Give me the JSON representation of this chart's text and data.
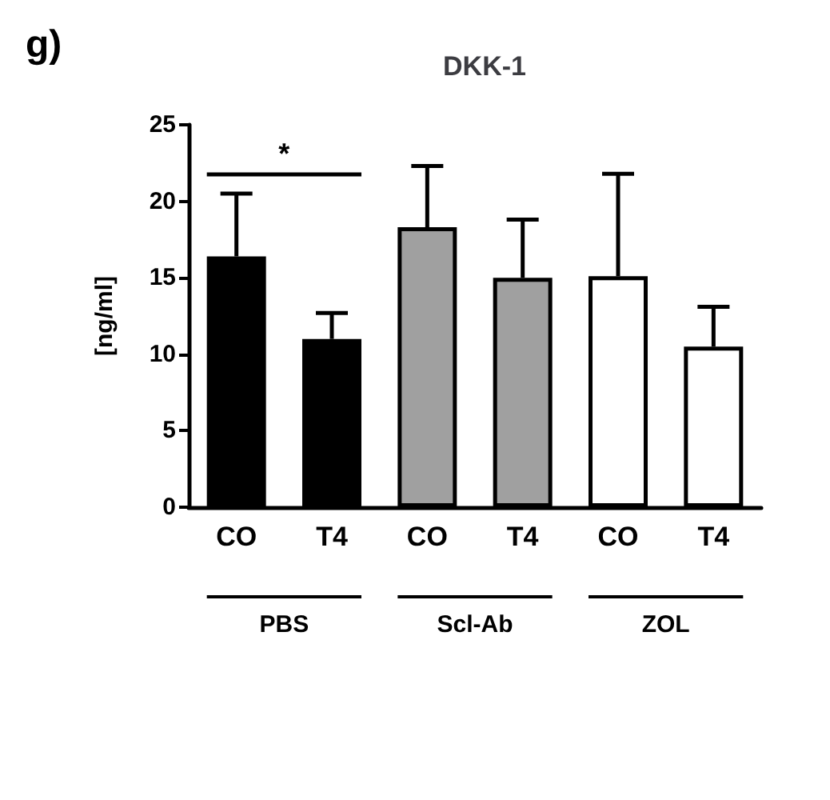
{
  "chart_data": {
    "type": "bar",
    "title": "DKK-1",
    "ylabel": "[ng/ml]",
    "categories": [
      "CO",
      "T4",
      "CO",
      "T4",
      "CO",
      "T4"
    ],
    "values": [
      16.4,
      11.0,
      18.3,
      15.0,
      15.1,
      10.5
    ],
    "errors": [
      [
        16.4,
        20.5
      ],
      [
        11.0,
        12.7
      ],
      [
        18.3,
        22.3
      ],
      [
        15.0,
        18.8
      ],
      [
        15.1,
        21.8
      ],
      [
        10.5,
        13.1
      ]
    ],
    "colors": [
      "#000000",
      "#000000",
      "#a0a0a0",
      "#a0a0a0",
      "#ffffff",
      "#ffffff"
    ],
    "ylim": [
      0,
      25
    ],
    "yticks": [
      0,
      5,
      10,
      15,
      20,
      25
    ],
    "grid": false,
    "annotations": [
      "g)",
      "PBS",
      "Scl-Ab",
      "ZOL",
      "*"
    ]
  }
}
